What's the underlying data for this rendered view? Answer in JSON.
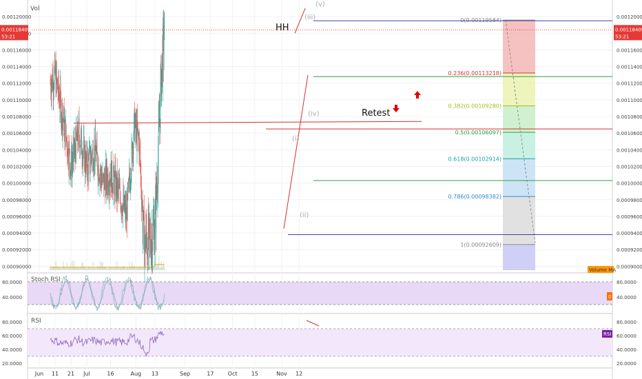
{
  "chart_data": {
    "type": "candlestick",
    "overlay_label": "Vol",
    "price_ticks": [
      "0.00120000",
      "0.00118000",
      "0.00116000",
      "0.00114000",
      "0.00112000",
      "0.00110000",
      "0.00108000",
      "0.00106000",
      "0.00104000",
      "0.00102000",
      "0.00100000",
      "0.00098000",
      "0.00096000",
      "0.00094000",
      "0.00092000",
      "0.00090000"
    ],
    "price_range": [
      0.000892,
      0.00122
    ],
    "current_price": {
      "price": "0.00118409",
      "countdown": "53:21",
      "color": "#e53935"
    },
    "x_ticks": [
      "Jun",
      "11",
      "21",
      "Jul",
      "16",
      "Aug",
      "13",
      "Sep",
      "17",
      "Oct",
      "15",
      "Nov",
      "12"
    ],
    "price_series_approx": [
      {
        "date": "May 20",
        "close": 0.000975
      },
      {
        "date": "Jun 1",
        "close": 0.00107
      },
      {
        "date": "Jun 8",
        "close": 0.00112
      },
      {
        "date": "Jun 11",
        "close": 0.00113
      },
      {
        "date": "Jun 14",
        "close": 0.0011
      },
      {
        "date": "Jun 21",
        "close": 0.00102
      },
      {
        "date": "Jun 26",
        "close": 0.00106
      },
      {
        "date": "Jul 1",
        "close": 0.00102
      },
      {
        "date": "Jul 6",
        "close": 0.00104
      },
      {
        "date": "Jul 11",
        "close": 0.001
      },
      {
        "date": "Jul 16",
        "close": 0.00101
      },
      {
        "date": "Jul 21",
        "close": 0.00099
      },
      {
        "date": "Jul 26",
        "close": 0.00096
      },
      {
        "date": "Jul 31",
        "close": 0.00107
      },
      {
        "date": "Aug 3",
        "close": 0.00105
      },
      {
        "date": "Aug 6",
        "close": 0.00093
      },
      {
        "date": "Aug 10",
        "close": 0.00093
      },
      {
        "date": "Aug 13",
        "close": 0.00095
      },
      {
        "date": "Aug 15",
        "close": 0.00103
      },
      {
        "date": "Aug 17",
        "close": 0.00113
      },
      {
        "date": "Aug 19",
        "close": 0.001184
      }
    ],
    "annotations": {
      "hh": "HH",
      "retest": "Retest",
      "wave_i": "(i)",
      "wave_ii": "(ii)",
      "wave_iii": "(iii)",
      "wave_iv": "(iv)",
      "wave_v": "(v)"
    },
    "horizontal_levels": [
      {
        "price": 0.001195,
        "color": "#3f3fa0"
      },
      {
        "price": 0.001128,
        "color": "#2e9e3e"
      },
      {
        "price": 0.001065,
        "color": "#d32f2f"
      },
      {
        "price": 0.001003,
        "color": "#2e9e3e"
      },
      {
        "price": 0.000938,
        "color": "#3f3fa0"
      }
    ],
    "fibonacci": [
      {
        "label": "0(0.00119584)",
        "price": 0.00119584,
        "color": "#888888",
        "fill": "#f4b6b6"
      },
      {
        "label": "0.236(0.00113218)",
        "price": 0.00113218,
        "color": "#d32f2f",
        "fill": "#eaf2b0"
      },
      {
        "label": "0.382(0.00109280)",
        "price": 0.0010928,
        "color": "#a8b820",
        "fill": "#c8efc8"
      },
      {
        "label": "0.5(0.00106097)",
        "price": 0.00106097,
        "color": "#2e9e3e",
        "fill": "#bfeede"
      },
      {
        "label": "0.618(0.00102914)",
        "price": 0.00102914,
        "color": "#1aa39a",
        "fill": "#c4dff4"
      },
      {
        "label": "0.786(0.00098382)",
        "price": 0.00098382,
        "color": "#2f8bc9",
        "fill": "#dcdcdc"
      },
      {
        "label": "1(0.00092609)",
        "price": 0.00092609,
        "color": "#888888",
        "fill": "#c8c8f4"
      }
    ],
    "volume_ma_label": "Volume MA",
    "stoch_rsi": {
      "label": "Stoch RSI",
      "ticks": [
        "80.0000",
        "40.0000"
      ],
      "range": [
        0,
        100
      ],
      "bands": [
        80,
        20
      ],
      "badge": "0"
    },
    "rsi": {
      "label": "RSI",
      "ticks": [
        "80.0000",
        "60.0000",
        "40.0000",
        "20.0000"
      ],
      "range": [
        15,
        90
      ],
      "bands": [
        70,
        30
      ],
      "badge": "RSI"
    }
  }
}
